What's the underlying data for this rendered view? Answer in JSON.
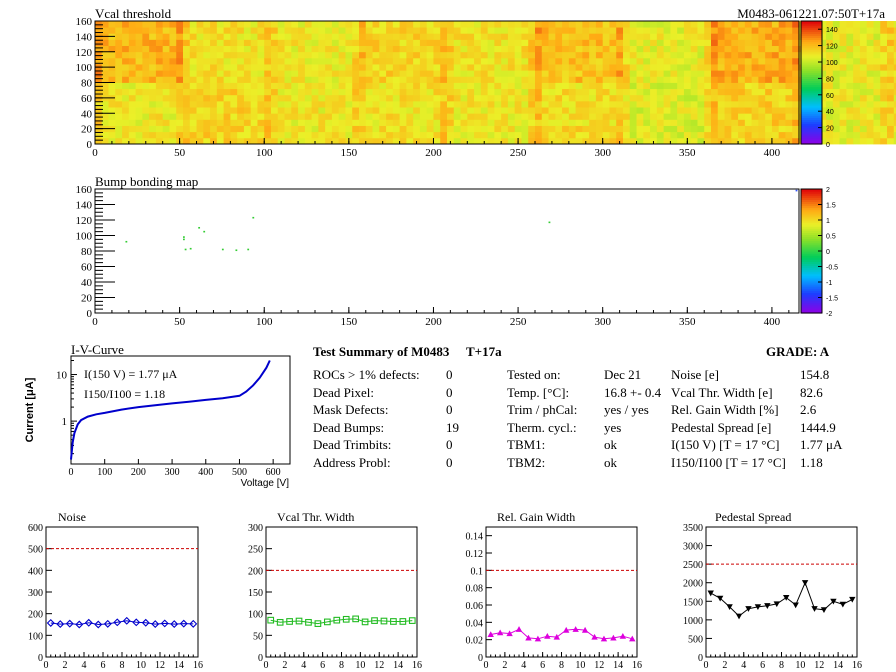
{
  "header": {
    "map_title": "Vcal threshold",
    "module_id": "M0483-061221.07:50T+17a",
    "bump_title": "Bump bonding map"
  },
  "colors": {
    "noise": "#0000cc",
    "vcal": "#22bb22",
    "gain": "#dd00dd",
    "pedestal": "#000000",
    "iv": "#0000cc",
    "limit": "#cc0000"
  },
  "chart_data": [
    {
      "type": "heatmap",
      "title": "Vcal threshold",
      "x_range": [
        0,
        416
      ],
      "y_range": [
        0,
        160
      ],
      "x_ticks": [
        0,
        50,
        100,
        150,
        200,
        250,
        300,
        350,
        400
      ],
      "y_ticks": [
        0,
        20,
        40,
        60,
        80,
        100,
        120,
        140,
        160
      ],
      "z_range": [
        0,
        150
      ],
      "z_ticks": [
        0,
        20,
        40,
        60,
        80,
        100,
        120,
        140
      ],
      "roc_mean": [
        [
          110,
          122
        ],
        [
          115,
          112
        ],
        [
          110,
          110
        ],
        [
          112,
          115
        ],
        [
          110,
          112
        ],
        [
          113,
          120
        ],
        [
          106,
          108
        ],
        [
          116,
          124
        ],
        [
          108,
          108
        ],
        [
          110,
          112
        ],
        [
          110,
          110
        ],
        [
          112,
          115
        ],
        [
          112,
          114
        ],
        [
          112,
          106
        ],
        [
          112,
          111
        ],
        [
          125,
          130
        ]
      ]
    },
    {
      "type": "heatmap",
      "title": "Bump bonding map",
      "x_range": [
        0,
        416
      ],
      "y_range": [
        0,
        160
      ],
      "x_ticks": [
        0,
        50,
        100,
        150,
        200,
        250,
        300,
        350,
        400
      ],
      "y_ticks": [
        0,
        20,
        40,
        60,
        80,
        100,
        120,
        140,
        160
      ],
      "z_range": [
        -2,
        2
      ],
      "z_ticks": [
        -2,
        -1.5,
        -1,
        -0.5,
        0,
        0.5,
        1,
        1.5,
        2
      ],
      "points": [
        [
          18,
          93
        ],
        [
          52,
          99
        ],
        [
          52,
          96
        ],
        [
          53,
          83
        ],
        [
          56,
          84
        ],
        [
          61,
          111
        ],
        [
          64,
          106
        ],
        [
          75,
          83
        ],
        [
          83,
          82
        ],
        [
          90,
          83
        ],
        [
          93,
          124
        ],
        [
          268,
          118
        ],
        [
          414,
          159
        ]
      ]
    },
    {
      "type": "line",
      "title": "I-V-Curve",
      "xlabel": "Voltage [V]",
      "ylabel": "Current [μA]",
      "x_range": [
        0,
        650
      ],
      "y_range": [
        0.12,
        25
      ],
      "y_scale": "log",
      "x_ticks": [
        0,
        100,
        200,
        300,
        400,
        500,
        600
      ],
      "y_ticks": [
        1,
        10
      ],
      "annotations": [
        "I(150 V) = 1.77 μA",
        "I150/I100 = 1.18"
      ],
      "x": [
        0,
        5,
        10,
        20,
        30,
        50,
        75,
        100,
        150,
        200,
        250,
        300,
        350,
        400,
        450,
        500,
        520,
        540,
        560,
        580,
        590
      ],
      "y": [
        0.15,
        0.35,
        0.55,
        0.85,
        1.05,
        1.25,
        1.4,
        1.5,
        1.77,
        2.0,
        2.2,
        2.4,
        2.6,
        2.85,
        3.1,
        3.5,
        4.3,
        5.8,
        8.5,
        14,
        20
      ]
    },
    {
      "type": "line",
      "title": "Noise",
      "x_range": [
        0,
        16
      ],
      "y_range": [
        0,
        600
      ],
      "limit": 500,
      "x_ticks": [
        0,
        2,
        4,
        6,
        8,
        10,
        12,
        14,
        16
      ],
      "y_ticks": [
        0,
        100,
        200,
        300,
        400,
        500,
        600
      ],
      "marker": "diamond",
      "x": [
        0.5,
        1.5,
        2.5,
        3.5,
        4.5,
        5.5,
        6.5,
        7.5,
        8.5,
        9.5,
        10.5,
        11.5,
        12.5,
        13.5,
        14.5,
        15.5
      ],
      "y": [
        157,
        152,
        154,
        150,
        158,
        150,
        153,
        160,
        167,
        160,
        158,
        152,
        155,
        152,
        154,
        153
      ]
    },
    {
      "type": "line",
      "title": "Vcal Thr. Width",
      "x_range": [
        0,
        16
      ],
      "y_range": [
        0,
        300
      ],
      "limit": 200,
      "x_ticks": [
        0,
        2,
        4,
        6,
        8,
        10,
        12,
        14,
        16
      ],
      "y_ticks": [
        0,
        50,
        100,
        150,
        200,
        250,
        300
      ],
      "marker": "square",
      "x": [
        0.5,
        1.5,
        2.5,
        3.5,
        4.5,
        5.5,
        6.5,
        7.5,
        8.5,
        9.5,
        10.5,
        11.5,
        12.5,
        13.5,
        14.5,
        15.5
      ],
      "y": [
        85,
        80,
        82,
        83,
        80,
        77,
        81,
        85,
        87,
        88,
        81,
        84,
        83,
        82,
        82,
        84
      ]
    },
    {
      "type": "line",
      "title": "Rel. Gain Width",
      "x_range": [
        0,
        16
      ],
      "y_range": [
        0,
        0.15
      ],
      "limit": 0.1,
      "x_ticks": [
        0,
        2,
        4,
        6,
        8,
        10,
        12,
        14,
        16
      ],
      "y_ticks": [
        0,
        0.02,
        0.04,
        0.06,
        0.08,
        0.1,
        0.12,
        0.14
      ],
      "marker": "triangle-up",
      "x": [
        0.5,
        1.5,
        2.5,
        3.5,
        4.5,
        5.5,
        6.5,
        7.5,
        8.5,
        9.5,
        10.5,
        11.5,
        12.5,
        13.5,
        14.5,
        15.5
      ],
      "y": [
        0.026,
        0.028,
        0.027,
        0.032,
        0.022,
        0.021,
        0.024,
        0.023,
        0.031,
        0.032,
        0.031,
        0.023,
        0.021,
        0.022,
        0.024,
        0.021
      ]
    },
    {
      "type": "line",
      "title": "Pedestal Spread",
      "x_range": [
        0,
        16
      ],
      "y_range": [
        0,
        3500
      ],
      "limit": 2500,
      "x_ticks": [
        0,
        2,
        4,
        6,
        8,
        10,
        12,
        14,
        16
      ],
      "y_ticks": [
        0,
        500,
        1000,
        1500,
        2000,
        2500,
        3000,
        3500
      ],
      "marker": "triangle-down",
      "x": [
        0.5,
        1.5,
        2.5,
        3.5,
        4.5,
        5.5,
        6.5,
        7.5,
        8.5,
        9.5,
        10.5,
        11.5,
        12.5,
        13.5,
        14.5,
        15.5
      ],
      "y": [
        1720,
        1580,
        1350,
        1100,
        1300,
        1350,
        1380,
        1430,
        1600,
        1400,
        2000,
        1300,
        1270,
        1500,
        1420,
        1550
      ]
    }
  ],
  "summary": {
    "title": "Test Summary of M0483",
    "temp_tag": "T+17a",
    "grade_label": "GRADE:  A",
    "col1_labels": [
      "ROCs > 1% defects:",
      "Dead Pixel:",
      "Mask Defects:",
      "Dead Bumps:",
      "Dead Trimbits:",
      "Address Probl:"
    ],
    "col1_values": [
      "0",
      "0",
      "0",
      "19",
      "0",
      "0"
    ],
    "col2_labels": [
      "Tested on:",
      "Temp. [°C]:",
      "Trim / phCal:",
      "Therm. cycl.:",
      "TBM1:",
      "TBM2:"
    ],
    "col2_values": [
      "Dec 21",
      "16.8 +- 0.4",
      "yes / yes",
      "yes",
      "ok",
      "ok"
    ],
    "col3_labels": [
      "Noise [e]",
      "Vcal Thr. Width [e]",
      "Rel. Gain Width [%]",
      "Pedestal Spread [e]",
      "I(150 V) [T = 17 °C]",
      "I150/I100  [T = 17 °C]"
    ],
    "col3_values": [
      "154.8",
      "82.6",
      "2.6",
      "1444.9",
      "1.77 μA",
      "1.18"
    ]
  }
}
